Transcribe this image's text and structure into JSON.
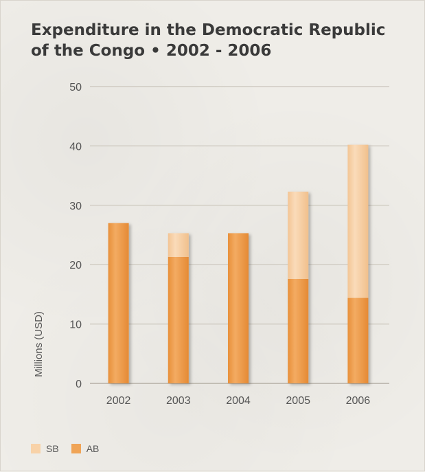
{
  "chart_data": {
    "type": "bar",
    "stacked": true,
    "title_line1": "Expenditure in the Democratic Republic",
    "title_line2": "of the Congo • 2002 - 2006",
    "xlabel": "",
    "ylabel": "Millions (USD)",
    "ylim": [
      0,
      50
    ],
    "yticks": [
      0,
      10,
      20,
      30,
      40,
      50
    ],
    "grid": true,
    "legend_position": "bottom-left",
    "categories": [
      "2002",
      "2003",
      "2004",
      "2005",
      "2006"
    ],
    "series": [
      {
        "name": "AB",
        "color": "#f0a456",
        "values": [
          27,
          21.3,
          25.3,
          17.6,
          14.4
        ]
      },
      {
        "name": "SB",
        "color": "#f8d2a8",
        "values": [
          0,
          4.0,
          0,
          14.7,
          25.8
        ]
      }
    ]
  }
}
